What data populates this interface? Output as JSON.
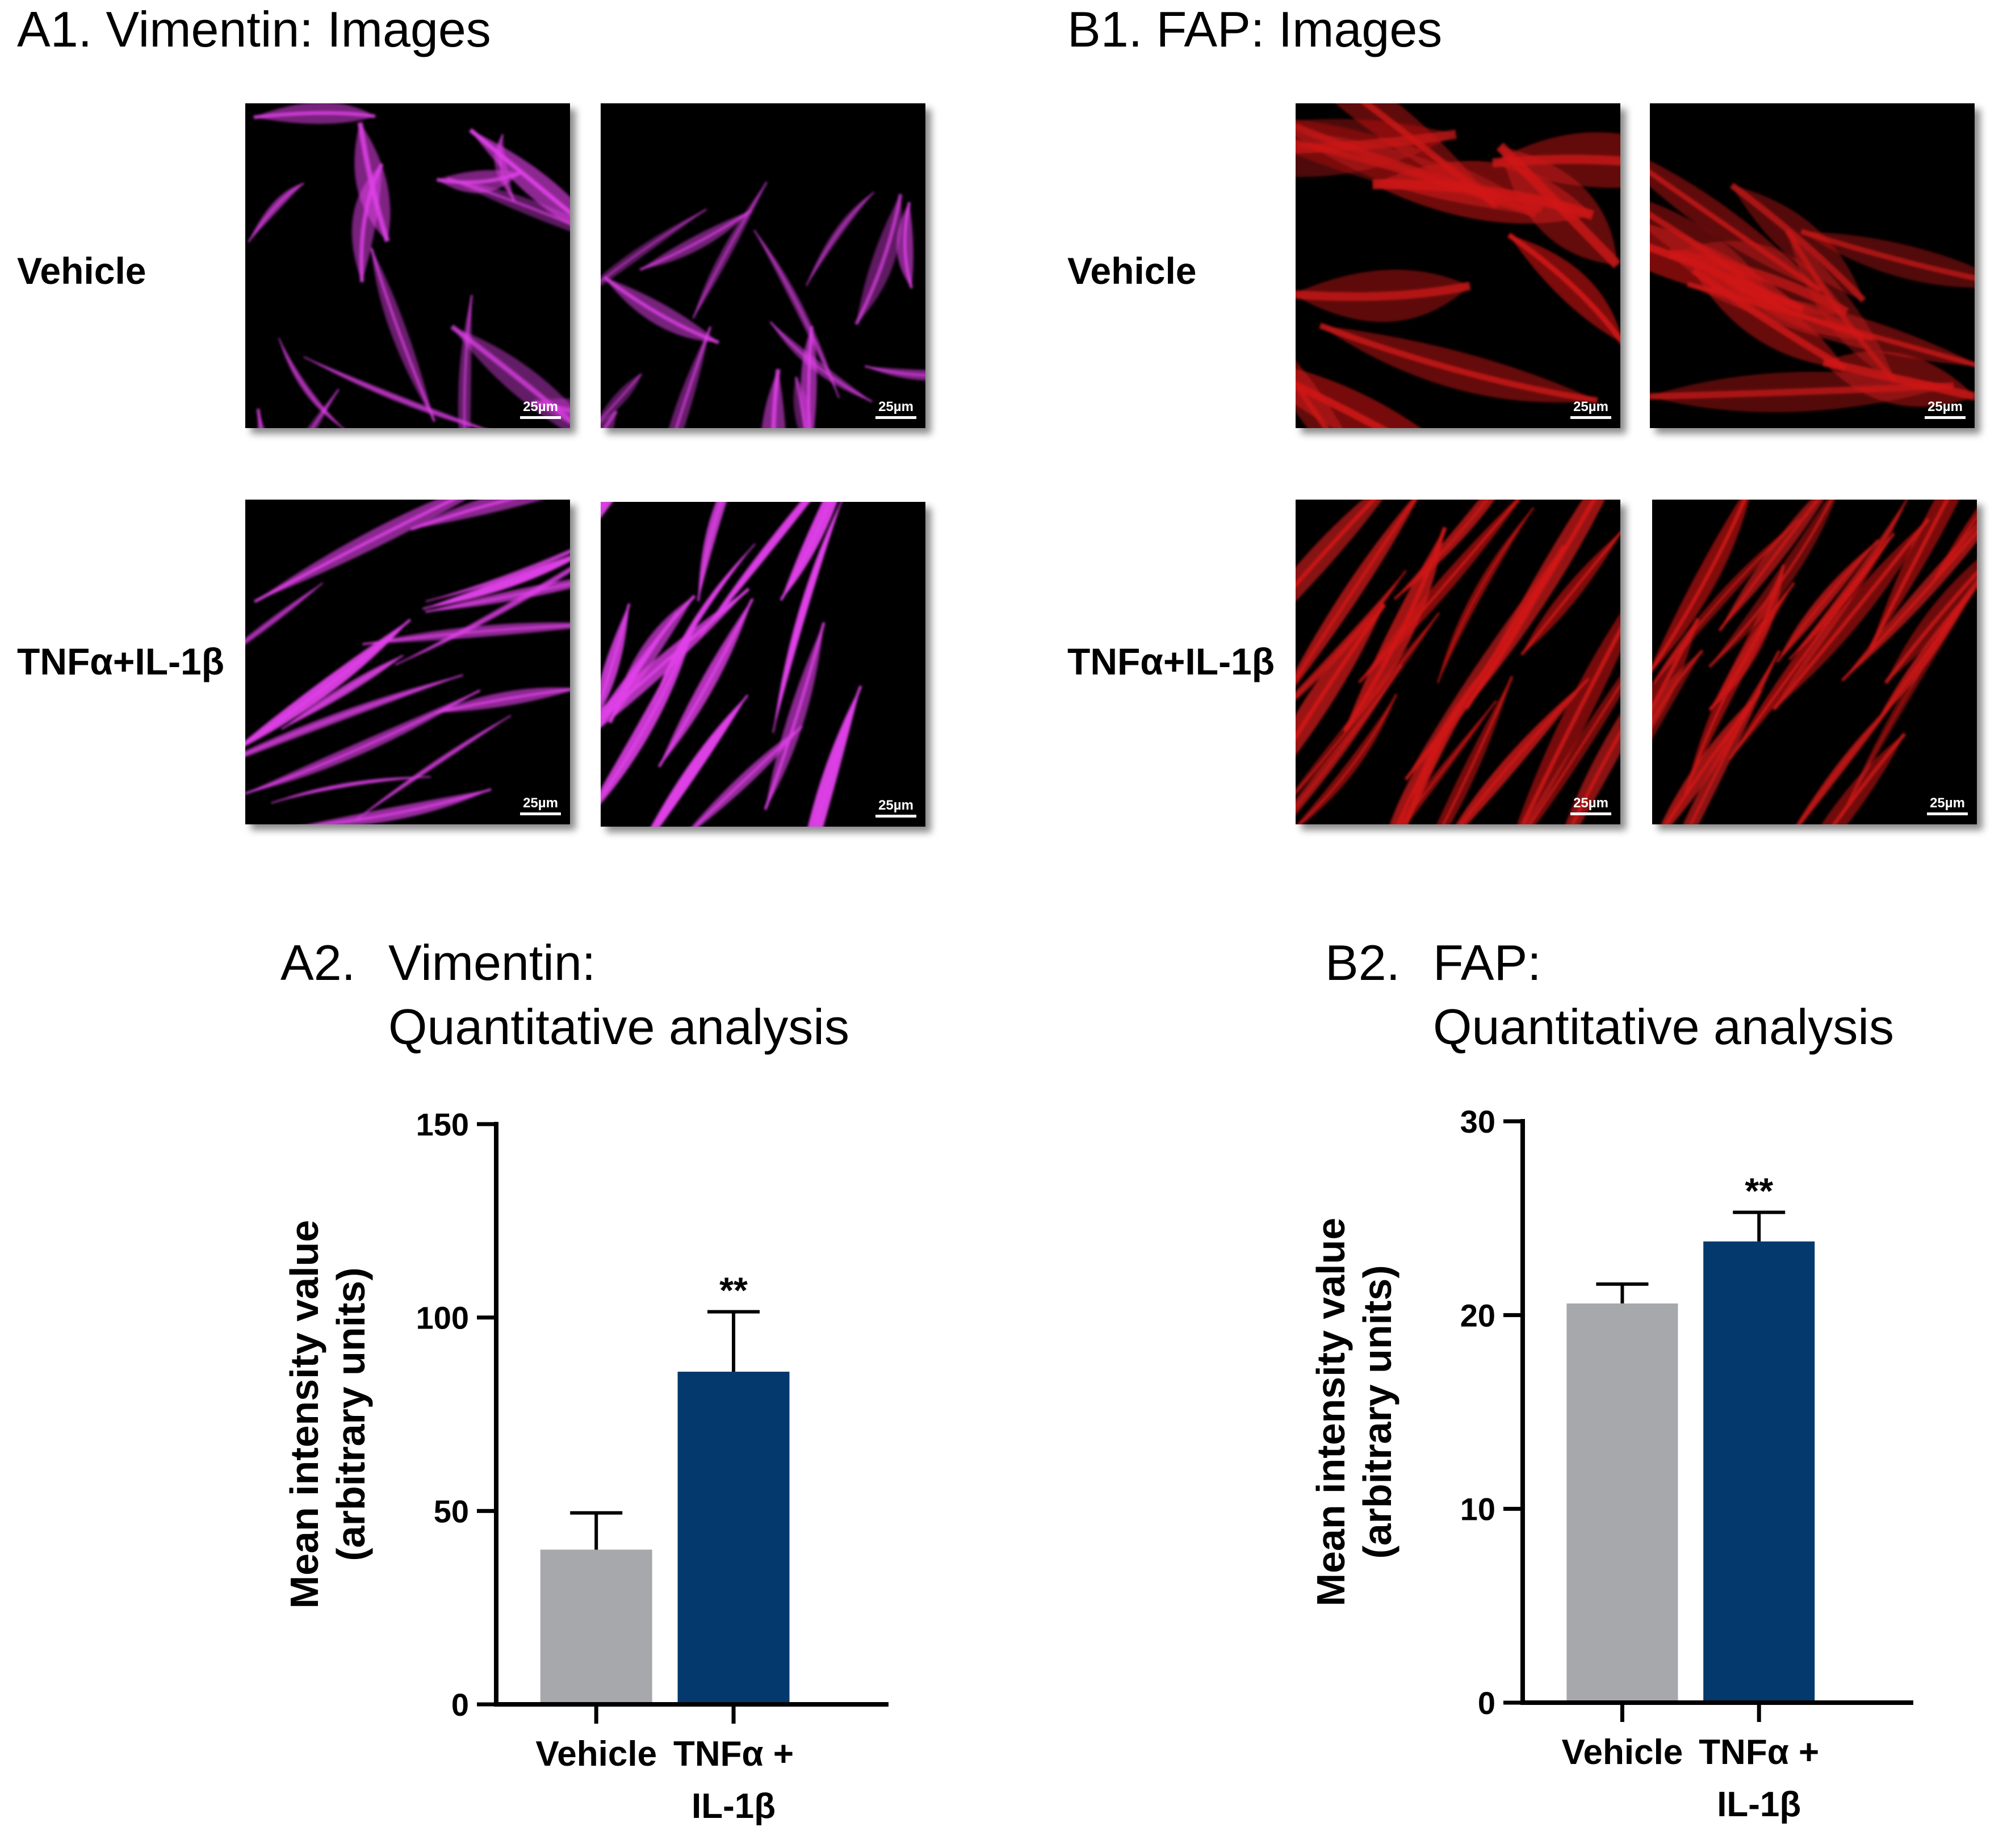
{
  "panels": {
    "a1_title": "A1. Vimentin: Images",
    "b1_title": "B1. FAP: Images",
    "a1_rows": [
      "Vehicle",
      "TNFα+IL-1β"
    ],
    "b1_rows": [
      "Vehicle",
      "TNFα+IL-1β"
    ],
    "scale_label": "25µm",
    "vimentin_color": "#e040e8",
    "fap_color": "#d01818"
  },
  "chart_data": [
    {
      "type": "bar",
      "title_num": "A2.",
      "title_line1": "Vimentin:",
      "title_line2": "Quantitative analysis",
      "ylabel_line1": "Mean intensity value",
      "ylabel_line2": "(arbitrary units)",
      "categories": [
        [
          "Vehicle"
        ],
        [
          "TNFα +",
          "IL-1β"
        ]
      ],
      "values": [
        40,
        86
      ],
      "errors": [
        9.5,
        15.5
      ],
      "colors": [
        "#a7a8ac",
        "#03396c"
      ],
      "significance": [
        "",
        "**"
      ],
      "ylim": [
        0,
        150
      ],
      "yticks": [
        0,
        50,
        100,
        150
      ]
    },
    {
      "type": "bar",
      "title_num": "B2.",
      "title_line1": "FAP:",
      "title_line2": "Quantitative analysis",
      "ylabel_line1": "Mean intensity value",
      "ylabel_line2": "(arbitrary units)",
      "categories": [
        [
          "Vehicle"
        ],
        [
          "TNFα +",
          "IL-1β"
        ]
      ],
      "values": [
        20.6,
        23.8
      ],
      "errors": [
        1.0,
        1.5
      ],
      "colors": [
        "#a7a8ac",
        "#03396c"
      ],
      "significance": [
        "",
        "**"
      ],
      "ylim": [
        0,
        30
      ],
      "yticks": [
        0,
        10,
        20,
        30
      ]
    }
  ]
}
